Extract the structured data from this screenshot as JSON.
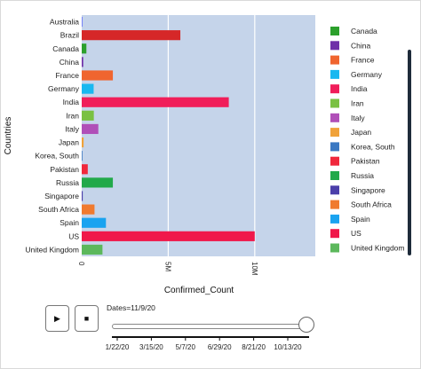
{
  "chart_data": {
    "type": "bar",
    "orientation": "horizontal",
    "categories": [
      "Australia",
      "Brazil",
      "Canada",
      "China",
      "France",
      "Germany",
      "India",
      "Iran",
      "Italy",
      "Japan",
      "Korea, South",
      "Pakistan",
      "Russia",
      "Singapore",
      "South Africa",
      "Spain",
      "US",
      "United Kingdom"
    ],
    "values": [
      27700,
      5700000,
      270000,
      86300,
      1800000,
      690000,
      8500000,
      700000,
      960000,
      110000,
      28000,
      350000,
      1800000,
      58000,
      740000,
      1400000,
      10000000,
      1200000
    ],
    "colors": [
      "#636efa",
      "#d62728",
      "#2ca02c",
      "#6f2fa8",
      "#f0652f",
      "#19b8f0",
      "#f01e5a",
      "#7ac142",
      "#b04fb8",
      "#f0a23a",
      "#3a78c2",
      "#f0283c",
      "#22a94a",
      "#4b3faa",
      "#f07a2f",
      "#1aa3f0",
      "#f0184a",
      "#5cb85c"
    ],
    "xlabel": "Confirmed_Count",
    "ylabel": "Countries",
    "xlim": [
      0,
      13500000
    ],
    "xticks": [
      0,
      5000000,
      10000000
    ],
    "xtick_labels": [
      "0",
      "5M",
      "10M"
    ],
    "grid": true,
    "legend": {
      "position": "right",
      "entries": [
        "Canada",
        "China",
        "France",
        "Germany",
        "India",
        "Iran",
        "Italy",
        "Japan",
        "Korea, South",
        "Pakistan",
        "Russia",
        "Singapore",
        "South Africa",
        "Spain",
        "US",
        "United Kingdom"
      ],
      "colors": [
        "#2ca02c",
        "#6f2fa8",
        "#f0652f",
        "#19b8f0",
        "#f01e5a",
        "#7ac142",
        "#b04fb8",
        "#f0a23a",
        "#3a78c2",
        "#f0283c",
        "#22a94a",
        "#4b3faa",
        "#f07a2f",
        "#1aa3f0",
        "#f0184a",
        "#5cb85c"
      ]
    }
  },
  "animation": {
    "play_symbol": "▶",
    "stop_symbol": "■",
    "current_label": "Dates=11/9/20",
    "slider_value_fraction": 1.0,
    "slider_ticks": [
      "1/22/20",
      "3/15/20",
      "5/7/20",
      "6/29/20",
      "8/21/20",
      "10/13/20"
    ]
  }
}
